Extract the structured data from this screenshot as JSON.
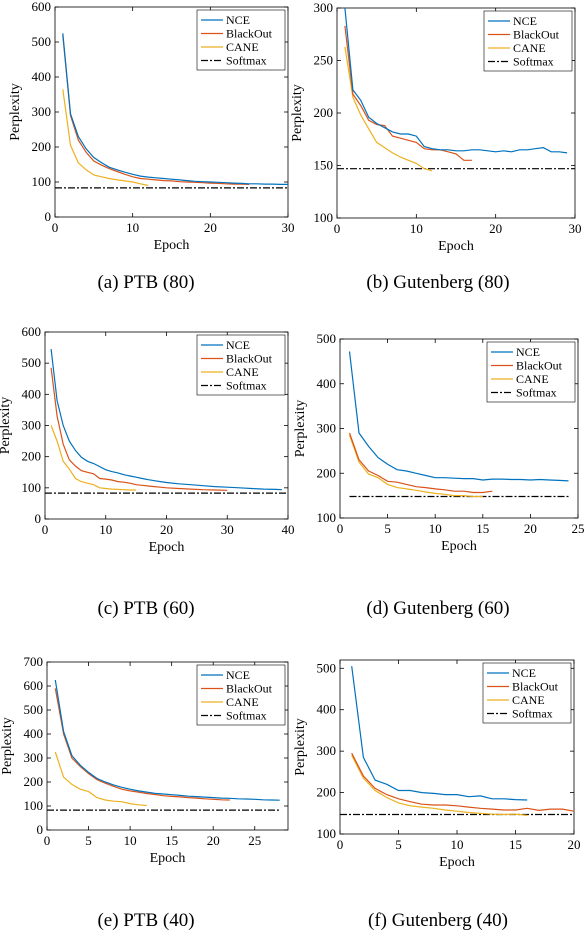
{
  "chart_data": [
    {
      "type": "line",
      "caption": "(a) PTB (80)",
      "xlabel": "Epoch",
      "ylabel": "Perplexity",
      "xlim": [
        0,
        30
      ],
      "ylim": [
        0,
        600
      ],
      "xticks": [
        "0",
        "10",
        "20",
        "30"
      ],
      "yticks": [
        "0",
        "100",
        "200",
        "300",
        "400",
        "500",
        "600"
      ],
      "legend_position": "top-right",
      "series": [
        {
          "name": "NCE",
          "color": "#0072bd",
          "dash": "",
          "x": [
            1,
            2,
            3,
            4,
            5,
            6,
            7,
            8,
            9,
            10,
            11,
            12,
            13,
            14,
            15,
            16,
            17,
            18,
            19,
            20,
            21,
            22,
            23,
            24,
            25,
            26,
            27,
            28,
            29,
            30
          ],
          "y": [
            525,
            295,
            230,
            195,
            170,
            155,
            142,
            135,
            128,
            122,
            117,
            114,
            112,
            110,
            108,
            106,
            104,
            102,
            101,
            100,
            99,
            98,
            97,
            96,
            95,
            95,
            94,
            94,
            93,
            93
          ]
        },
        {
          "name": "BlackOut",
          "color": "#d95319",
          "dash": "",
          "x": [
            1,
            2,
            3,
            4,
            5,
            6,
            7,
            8,
            9,
            10,
            11,
            12,
            13,
            14,
            15,
            16,
            17,
            18,
            19,
            20,
            21,
            22,
            23,
            24,
            25
          ],
          "y": [
            520,
            290,
            220,
            185,
            160,
            148,
            138,
            130,
            122,
            115,
            110,
            108,
            106,
            104,
            103,
            101,
            100,
            99,
            98,
            97,
            96,
            95,
            94,
            94,
            93
          ]
        },
        {
          "name": "CANE",
          "color": "#edb120",
          "dash": "",
          "x": [
            1,
            2,
            3,
            4,
            5,
            6,
            7,
            8,
            9,
            10,
            11,
            12
          ],
          "y": [
            365,
            205,
            155,
            135,
            120,
            115,
            110,
            106,
            103,
            100,
            95,
            90
          ]
        },
        {
          "name": "Softmax",
          "color": "#000000",
          "dash": "7,2,2,2",
          "x": [
            0,
            30
          ],
          "y": [
            83,
            83
          ]
        }
      ]
    },
    {
      "type": "line",
      "caption": "(b) Gutenberg (80)",
      "xlabel": "Epoch",
      "ylabel": "",
      "xlim": [
        0,
        30
      ],
      "ylim": [
        100,
        300
      ],
      "xticks": [
        "0",
        "10",
        "20",
        "30"
      ],
      "yticks": [
        "100",
        "150",
        "200",
        "250",
        "300"
      ],
      "legend_position": "top-right",
      "series": [
        {
          "name": "NCE",
          "color": "#0072bd",
          "dash": "",
          "x": [
            1,
            2,
            3,
            4,
            5,
            6,
            7,
            8,
            9,
            10,
            11,
            12,
            13,
            14,
            15,
            16,
            17,
            18,
            19,
            20,
            21,
            22,
            23,
            24,
            25,
            26,
            27,
            28,
            29
          ],
          "y": [
            300,
            222,
            212,
            196,
            190,
            186,
            182,
            180,
            180,
            178,
            168,
            166,
            165,
            165,
            164,
            164,
            165,
            165,
            164,
            163,
            164,
            163,
            165,
            165,
            166,
            167,
            163,
            163,
            162
          ]
        },
        {
          "name": "BlackOut",
          "color": "#d95319",
          "dash": "",
          "x": [
            1,
            2,
            3,
            4,
            5,
            6,
            7,
            8,
            9,
            10,
            11,
            12,
            13,
            14,
            15,
            16,
            17
          ],
          "y": [
            283,
            218,
            207,
            193,
            189,
            188,
            178,
            176,
            174,
            172,
            166,
            165,
            165,
            163,
            161,
            155,
            155
          ]
        },
        {
          "name": "CANE",
          "color": "#edb120",
          "dash": "",
          "x": [
            1,
            2,
            3,
            4,
            5,
            6,
            7,
            8,
            9,
            10,
            11,
            12
          ],
          "y": [
            263,
            215,
            198,
            185,
            172,
            167,
            162,
            158,
            155,
            152,
            147,
            145
          ]
        },
        {
          "name": "Softmax",
          "color": "#000000",
          "dash": "7,2,2,2",
          "x": [
            0,
            30
          ],
          "y": [
            147,
            147
          ]
        }
      ]
    },
    {
      "type": "line",
      "caption": "(c) PTB (60)",
      "xlabel": "Epoch",
      "ylabel": "Perplexity",
      "xlim": [
        0,
        40
      ],
      "ylim": [
        0,
        600
      ],
      "xticks": [
        "0",
        "10",
        "20",
        "30",
        "40"
      ],
      "yticks": [
        "0",
        "100",
        "200",
        "300",
        "400",
        "500",
        "600"
      ],
      "legend_position": "top-right",
      "series": [
        {
          "name": "NCE",
          "color": "#0072bd",
          "dash": "",
          "x": [
            1,
            2,
            3,
            4,
            5,
            6,
            7,
            8,
            9,
            10,
            11,
            12,
            13,
            14,
            15,
            16,
            17,
            18,
            19,
            20,
            22,
            24,
            26,
            28,
            30,
            32,
            34,
            36,
            38,
            39
          ],
          "y": [
            545,
            380,
            300,
            250,
            220,
            198,
            185,
            178,
            168,
            158,
            152,
            148,
            142,
            138,
            134,
            130,
            126,
            123,
            120,
            117,
            113,
            110,
            107,
            104,
            102,
            100,
            98,
            96,
            95,
            94
          ]
        },
        {
          "name": "BlackOut",
          "color": "#d95319",
          "dash": "",
          "x": [
            1,
            2,
            3,
            4,
            5,
            6,
            7,
            8,
            9,
            10,
            11,
            12,
            13,
            14,
            15,
            16,
            17,
            18,
            19,
            20,
            22,
            24,
            26,
            28,
            30
          ],
          "y": [
            485,
            330,
            240,
            190,
            170,
            155,
            150,
            145,
            130,
            128,
            125,
            120,
            118,
            115,
            110,
            108,
            106,
            104,
            102,
            100,
            98,
            96,
            94,
            93,
            92
          ]
        },
        {
          "name": "CANE",
          "color": "#edb120",
          "dash": "",
          "x": [
            1,
            2,
            3,
            4,
            5,
            6,
            7,
            8,
            9,
            10,
            11,
            12,
            13,
            14,
            15
          ],
          "y": [
            300,
            250,
            185,
            160,
            130,
            120,
            115,
            110,
            100,
            98,
            96,
            95,
            94,
            93,
            93
          ]
        },
        {
          "name": "Softmax",
          "color": "#000000",
          "dash": "7,2,2,2",
          "x": [
            0,
            40
          ],
          "y": [
            83,
            83
          ]
        }
      ]
    },
    {
      "type": "line",
      "caption": "(d) Gutenberg (60)",
      "xlabel": "Epoch",
      "ylabel": "",
      "xlim": [
        0,
        25
      ],
      "ylim": [
        100,
        500
      ],
      "xticks": [
        "0",
        "5",
        "10",
        "15",
        "20",
        "25"
      ],
      "yticks": [
        "100",
        "200",
        "300",
        "400",
        "500"
      ],
      "legend_position": "top-right",
      "series": [
        {
          "name": "NCE",
          "color": "#0072bd",
          "dash": "",
          "x": [
            1,
            2,
            3,
            4,
            5,
            6,
            7,
            8,
            9,
            10,
            11,
            12,
            13,
            14,
            15,
            16,
            17,
            18,
            19,
            20,
            21,
            22,
            23,
            24
          ],
          "y": [
            472,
            290,
            260,
            235,
            220,
            208,
            205,
            200,
            195,
            190,
            190,
            189,
            188,
            188,
            185,
            187,
            187,
            186,
            186,
            185,
            186,
            185,
            184,
            183
          ]
        },
        {
          "name": "BlackOut",
          "color": "#d95319",
          "dash": "",
          "x": [
            1,
            2,
            3,
            4,
            5,
            6,
            7,
            8,
            9,
            10,
            11,
            12,
            13,
            14,
            15,
            16
          ],
          "y": [
            290,
            230,
            205,
            195,
            182,
            180,
            175,
            170,
            168,
            165,
            163,
            160,
            160,
            157,
            157,
            160
          ]
        },
        {
          "name": "CANE",
          "color": "#edb120",
          "dash": "",
          "x": [
            1,
            2,
            3,
            4,
            5,
            6,
            7,
            8,
            9,
            10,
            11,
            12,
            13,
            14,
            15
          ],
          "y": [
            285,
            225,
            198,
            190,
            175,
            168,
            165,
            162,
            158,
            155,
            153,
            150,
            150,
            148,
            148
          ]
        },
        {
          "name": "Softmax",
          "color": "#000000",
          "dash": "7,2,2,2",
          "x": [
            1,
            24
          ],
          "y": [
            148,
            148
          ]
        }
      ]
    },
    {
      "type": "line",
      "caption": "(e) PTB (40)",
      "xlabel": "Epoch",
      "ylabel": "Perplexity",
      "xlim": [
        0,
        29
      ],
      "ylim": [
        0,
        700
      ],
      "xticks": [
        "0",
        "5",
        "10",
        "15",
        "20",
        "25"
      ],
      "xtick_values": [
        0,
        5,
        10,
        15,
        20,
        25
      ],
      "yticks": [
        "0",
        "100",
        "200",
        "300",
        "400",
        "500",
        "600",
        "700"
      ],
      "legend_position": "top-right",
      "series": [
        {
          "name": "NCE",
          "color": "#0072bd",
          "dash": "",
          "x": [
            1,
            2,
            3,
            4,
            5,
            6,
            7,
            8,
            9,
            10,
            11,
            12,
            13,
            14,
            15,
            16,
            17,
            18,
            19,
            20,
            21,
            22,
            23,
            24,
            25,
            26,
            27,
            28
          ],
          "y": [
            625,
            410,
            310,
            270,
            240,
            215,
            200,
            188,
            178,
            170,
            163,
            158,
            153,
            150,
            147,
            144,
            141,
            139,
            137,
            135,
            133,
            132,
            130,
            129,
            128,
            126,
            125,
            124
          ]
        },
        {
          "name": "BlackOut",
          "color": "#d95319",
          "dash": "",
          "x": [
            1,
            2,
            3,
            4,
            5,
            6,
            7,
            8,
            9,
            10,
            11,
            12,
            13,
            14,
            15,
            16,
            17,
            18,
            19,
            20,
            21,
            22
          ],
          "y": [
            590,
            400,
            300,
            265,
            235,
            210,
            195,
            182,
            170,
            163,
            158,
            152,
            148,
            143,
            140,
            138,
            135,
            133,
            130,
            128,
            126,
            125
          ]
        },
        {
          "name": "CANE",
          "color": "#edb120",
          "dash": "",
          "x": [
            1,
            2,
            3,
            4,
            5,
            6,
            7,
            8,
            9,
            10,
            11,
            12
          ],
          "y": [
            325,
            220,
            190,
            170,
            160,
            135,
            125,
            120,
            118,
            110,
            105,
            102
          ]
        },
        {
          "name": "Softmax",
          "color": "#000000",
          "dash": "7,2,2,2",
          "x": [
            0,
            28
          ],
          "y": [
            83,
            83
          ]
        }
      ]
    },
    {
      "type": "line",
      "caption": "(f) Gutenberg (40)",
      "xlabel": "Epoch",
      "ylabel": "",
      "xlim": [
        0,
        20
      ],
      "ylim": [
        100,
        520
      ],
      "xticks": [
        "0",
        "5",
        "10",
        "15",
        "20"
      ],
      "xtick_values": [
        0,
        5,
        10,
        15,
        20
      ],
      "yticks": [
        "100",
        "200",
        "300",
        "400",
        "500"
      ],
      "ytick_values": [
        100,
        200,
        300,
        400,
        500
      ],
      "legend_position": "top-right",
      "series": [
        {
          "name": "NCE",
          "color": "#0072bd",
          "dash": "",
          "x": [
            1,
            2,
            3,
            4,
            5,
            6,
            7,
            8,
            9,
            10,
            11,
            12,
            13,
            14,
            15,
            16
          ],
          "y": [
            505,
            285,
            230,
            220,
            205,
            205,
            200,
            198,
            195,
            195,
            190,
            192,
            185,
            185,
            183,
            182
          ]
        },
        {
          "name": "BlackOut",
          "color": "#d95319",
          "dash": "",
          "x": [
            1,
            2,
            3,
            4,
            5,
            6,
            7,
            8,
            9,
            10,
            11,
            12,
            13,
            14,
            15,
            16,
            17,
            18,
            19,
            20
          ],
          "y": [
            295,
            240,
            210,
            195,
            185,
            178,
            172,
            170,
            170,
            168,
            165,
            162,
            160,
            158,
            158,
            162,
            157,
            160,
            160,
            155
          ]
        },
        {
          "name": "CANE",
          "color": "#edb120",
          "dash": "",
          "x": [
            1,
            2,
            3,
            4,
            5,
            6,
            7,
            8,
            9,
            10,
            11,
            12,
            13,
            14,
            15,
            16
          ],
          "y": [
            290,
            235,
            205,
            188,
            175,
            168,
            165,
            162,
            158,
            155,
            152,
            150,
            148,
            147,
            148,
            145
          ]
        },
        {
          "name": "Softmax",
          "color": "#000000",
          "dash": "7,2,2,2",
          "x": [
            0,
            20
          ],
          "y": [
            147,
            147
          ]
        }
      ]
    }
  ]
}
